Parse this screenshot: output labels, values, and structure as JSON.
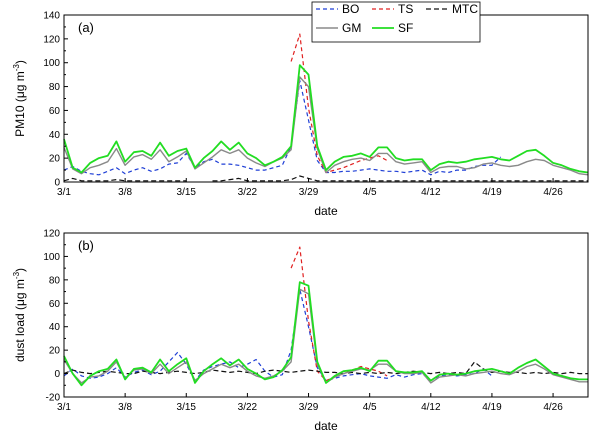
{
  "chart_data": [
    {
      "panel_label": "(a)",
      "type": "line",
      "ylabel_main": "PM10 (μg m",
      "ylabel_sup": "-3",
      "ylabel_end": ")",
      "xlabel": "date",
      "ylim": [
        0,
        140
      ],
      "yticks": [
        0,
        20,
        40,
        60,
        80,
        100,
        120,
        140
      ],
      "xlim": [
        0,
        60
      ],
      "xticks": [
        {
          "x": 0,
          "label": "3/1"
        },
        {
          "x": 7,
          "label": "3/8"
        },
        {
          "x": 14,
          "label": "3/15"
        },
        {
          "x": 21,
          "label": "3/22"
        },
        {
          "x": 28,
          "label": "3/29"
        },
        {
          "x": 35,
          "label": "4/5"
        },
        {
          "x": 42,
          "label": "4/12"
        },
        {
          "x": 49,
          "label": "4/19"
        },
        {
          "x": 56,
          "label": "4/26"
        }
      ],
      "series": [
        {
          "name": "BO",
          "color": "#1f3fd6",
          "dash": "4,3",
          "width": 1.2,
          "values": [
            10,
            13,
            9,
            7,
            6,
            9,
            12,
            7,
            10,
            12,
            9,
            11,
            15,
            16,
            24,
            12,
            17,
            19,
            15,
            15,
            14,
            12,
            10,
            10,
            12,
            14,
            30,
            85,
            52,
            18,
            8,
            8,
            9,
            9,
            10,
            11,
            10,
            9,
            9,
            8,
            9,
            10,
            6,
            9,
            8,
            10,
            10,
            13,
            14,
            14,
            21,
            null,
            null,
            null,
            null,
            null,
            null,
            null,
            null,
            null,
            null
          ]
        },
        {
          "name": "TS",
          "color": "#e02020",
          "dash": "4,3",
          "width": 1.2,
          "values": [
            null,
            null,
            null,
            null,
            null,
            null,
            null,
            null,
            null,
            null,
            null,
            null,
            null,
            null,
            null,
            null,
            null,
            null,
            null,
            null,
            null,
            null,
            null,
            null,
            null,
            null,
            101,
            124,
            62,
            22,
            8,
            10,
            12,
            15,
            18,
            20,
            22,
            18,
            null,
            null,
            null,
            null,
            null,
            null,
            null,
            null,
            null,
            null,
            null,
            null,
            null,
            null,
            null,
            null,
            null,
            null,
            null,
            null,
            null,
            null,
            null
          ]
        },
        {
          "name": "MTC",
          "color": "#111111",
          "dash": "5,3",
          "width": 1.2,
          "values": [
            1,
            3,
            1,
            1,
            1,
            1,
            2,
            1,
            1,
            1,
            1,
            1,
            1,
            1,
            1,
            null,
            null,
            1,
            1,
            2,
            3,
            1,
            1,
            1,
            1,
            1,
            2,
            5,
            3,
            1,
            1,
            1,
            1,
            1,
            1,
            1,
            1,
            1,
            1,
            1,
            1,
            1,
            1,
            1,
            1,
            1,
            1,
            1,
            1,
            1,
            1,
            1,
            1,
            1,
            1,
            1,
            1,
            1,
            1,
            1,
            1
          ]
        },
        {
          "name": "GM",
          "color": "#8a8a8a",
          "dash": "",
          "width": 1.4,
          "values": [
            29,
            11,
            7,
            12,
            14,
            17,
            28,
            14,
            21,
            23,
            19,
            27,
            17,
            21,
            26,
            11,
            16,
            21,
            27,
            24,
            27,
            20,
            16,
            13,
            17,
            20,
            27,
            88,
            80,
            28,
            8,
            14,
            17,
            19,
            20,
            18,
            24,
            24,
            17,
            15,
            16,
            17,
            8,
            12,
            13,
            13,
            11,
            12,
            15,
            16,
            14,
            13,
            14,
            17,
            19,
            18,
            14,
            12,
            10,
            7,
            6
          ]
        },
        {
          "name": "SF",
          "color": "#22dd22",
          "dash": "",
          "width": 1.8,
          "values": [
            36,
            12,
            8,
            16,
            20,
            22,
            34,
            17,
            25,
            26,
            22,
            33,
            22,
            26,
            28,
            12,
            20,
            26,
            34,
            27,
            33,
            24,
            20,
            14,
            17,
            21,
            30,
            98,
            90,
            30,
            10,
            17,
            21,
            22,
            24,
            21,
            29,
            29,
            20,
            18,
            19,
            19,
            10,
            15,
            17,
            16,
            17,
            19,
            20,
            21,
            19,
            18,
            22,
            26,
            27,
            22,
            16,
            14,
            11,
            9,
            8
          ]
        }
      ]
    },
    {
      "panel_label": "(b)",
      "type": "line",
      "ylabel_main": "dust load (μg m",
      "ylabel_sup": "-3",
      "ylabel_end": ")",
      "xlabel": "date",
      "ylim": [
        -20,
        120
      ],
      "yticks": [
        -20,
        0,
        20,
        40,
        60,
        80,
        100,
        120
      ],
      "xlim": [
        0,
        60
      ],
      "xticks": [
        {
          "x": 0,
          "label": "3/1"
        },
        {
          "x": 7,
          "label": "3/8"
        },
        {
          "x": 14,
          "label": "3/15"
        },
        {
          "x": 21,
          "label": "3/22"
        },
        {
          "x": 28,
          "label": "3/29"
        },
        {
          "x": 35,
          "label": "4/5"
        },
        {
          "x": 42,
          "label": "4/12"
        },
        {
          "x": 49,
          "label": "4/19"
        },
        {
          "x": 56,
          "label": "4/26"
        }
      ],
      "series": [
        {
          "name": "BO",
          "color": "#1f3fd6",
          "dash": "4,3",
          "width": 1.2,
          "values": [
            -2,
            4,
            -2,
            -4,
            -3,
            0,
            5,
            -3,
            1,
            3,
            -1,
            2,
            10,
            18,
            8,
            -6,
            3,
            6,
            8,
            10,
            5,
            8,
            12,
            2,
            -3,
            -1,
            20,
            72,
            40,
            5,
            -6,
            -4,
            -2,
            -1,
            0,
            -2,
            -3,
            -4,
            -1,
            -3,
            -1,
            0,
            -6,
            -2,
            -1,
            -2,
            -1,
            0,
            4,
            -2,
            null,
            null,
            null,
            null,
            null,
            null,
            null,
            null,
            null,
            null,
            null
          ]
        },
        {
          "name": "TS",
          "color": "#e02020",
          "dash": "4,3",
          "width": 1.2,
          "values": [
            null,
            null,
            null,
            null,
            null,
            null,
            null,
            null,
            null,
            null,
            null,
            null,
            null,
            null,
            null,
            null,
            null,
            null,
            null,
            null,
            null,
            null,
            null,
            null,
            null,
            null,
            90,
            108,
            45,
            2,
            -6,
            -3,
            0,
            3,
            6,
            4,
            2,
            -2,
            null,
            null,
            null,
            null,
            null,
            null,
            null,
            null,
            null,
            null,
            null,
            null,
            null,
            null,
            null,
            null,
            null,
            null,
            null,
            null,
            null,
            null,
            null
          ]
        },
        {
          "name": "MTC",
          "color": "#111111",
          "dash": "5,3",
          "width": 1.2,
          "values": [
            0,
            3,
            1,
            0,
            1,
            2,
            1,
            0,
            0,
            2,
            1,
            0,
            1,
            2,
            1,
            0,
            1,
            3,
            2,
            1,
            2,
            1,
            0,
            2,
            3,
            2,
            1,
            2,
            3,
            2,
            1,
            1,
            0,
            1,
            0,
            1,
            0,
            1,
            0,
            1,
            2,
            1,
            0,
            1,
            0,
            1,
            0,
            10,
            4,
            1,
            2,
            1,
            1,
            0,
            1,
            0,
            1,
            0,
            1,
            0,
            0
          ]
        },
        {
          "name": "GM",
          "color": "#8a8a8a",
          "dash": "",
          "width": 1.4,
          "values": [
            12,
            0,
            -8,
            -3,
            -2,
            2,
            10,
            -4,
            3,
            4,
            0,
            8,
            0,
            5,
            10,
            -6,
            0,
            4,
            8,
            5,
            8,
            2,
            -2,
            -4,
            -2,
            2,
            10,
            72,
            68,
            8,
            -8,
            -3,
            0,
            2,
            4,
            3,
            8,
            8,
            2,
            0,
            0,
            1,
            -8,
            -3,
            -2,
            -1,
            -2,
            0,
            1,
            2,
            0,
            -1,
            2,
            6,
            8,
            4,
            -1,
            -3,
            -5,
            -7,
            -7
          ]
        },
        {
          "name": "SF",
          "color": "#22dd22",
          "dash": "",
          "width": 1.8,
          "values": [
            15,
            0,
            -10,
            -2,
            2,
            4,
            12,
            -5,
            4,
            5,
            1,
            12,
            2,
            8,
            13,
            -8,
            2,
            8,
            13,
            7,
            12,
            4,
            0,
            -5,
            -3,
            3,
            14,
            78,
            75,
            10,
            -8,
            -2,
            2,
            3,
            5,
            2,
            11,
            11,
            2,
            1,
            1,
            2,
            -6,
            -1,
            0,
            -1,
            0,
            2,
            3,
            4,
            2,
            0,
            5,
            9,
            12,
            6,
            0,
            -2,
            -4,
            -5,
            -5
          ]
        }
      ]
    }
  ]
}
